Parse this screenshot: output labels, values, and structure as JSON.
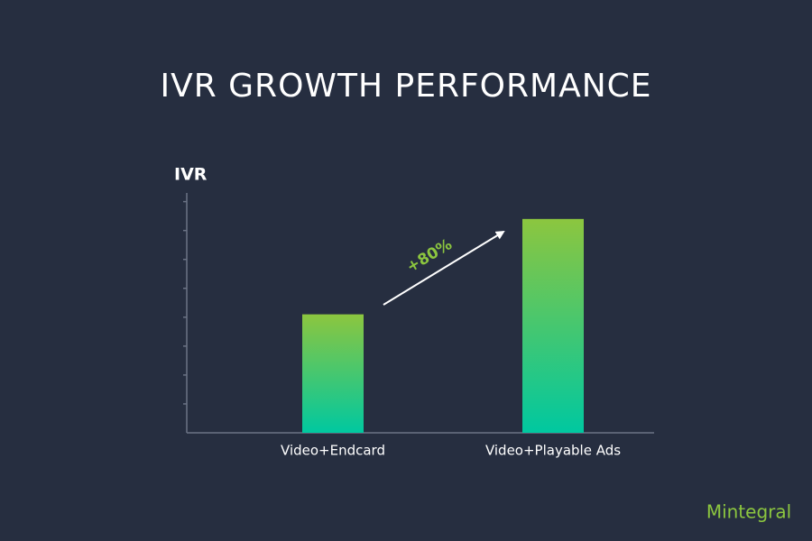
{
  "chart_data": {
    "type": "bar",
    "title": "IVR GROWTH PERFORMANCE",
    "y_label": "IVR",
    "categories": [
      "Video+Endcard",
      "Video+Playable Ads"
    ],
    "values": [
      4.1,
      7.4
    ],
    "color": "#8cc63f",
    "gradient_to": "#00c8a0",
    "ylim": [
      0,
      8.3
    ],
    "yticks": [
      1,
      2,
      3,
      4,
      5,
      6,
      7,
      8
    ],
    "annotation": "+80%",
    "logo": "Mintegral"
  }
}
